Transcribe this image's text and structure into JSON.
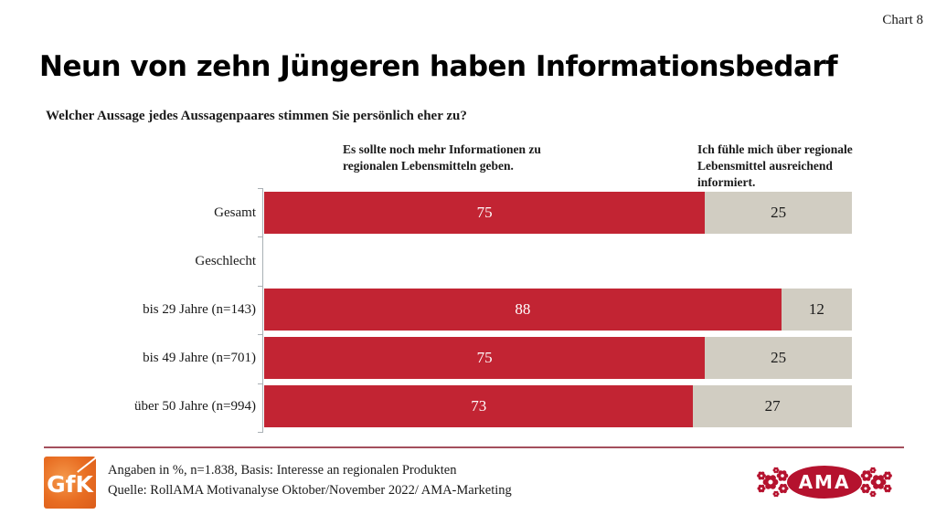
{
  "page": {
    "corner_label": "Chart 8",
    "title": "Neun von zehn Jüngeren haben Informationsbedarf",
    "question": "Welcher Aussage jedes Aussagenpaares stimmen Sie persönlich eher zu?"
  },
  "chart_data": {
    "type": "bar",
    "orientation": "horizontal",
    "stacked": true,
    "unit": "percent",
    "xlim": [
      0,
      100
    ],
    "grid": false,
    "legend_position": "top-as-column-headers",
    "categories": [
      "Gesamt",
      "Geschlecht",
      "bis 29 Jahre (n=143)",
      "bis 49 Jahre (n=701)",
      "über 50 Jahre (n=994)"
    ],
    "series": [
      {
        "name": "Es sollte noch mehr Informationen zu regionalen Lebensmitteln geben.",
        "color": "#C22433",
        "text_color": "#FFFFFF",
        "values": [
          75,
          null,
          88,
          75,
          73
        ]
      },
      {
        "name": "Ich fühle mich über regionale Lebensmittel ausreichend informiert.",
        "color": "#D1CDC2",
        "text_color": "#1A1A1A",
        "values": [
          25,
          null,
          12,
          25,
          27
        ]
      }
    ]
  },
  "footer": {
    "note_line1": "Angaben in %, n=1.838, Basis: Interesse an regionalen Produkten",
    "note_line2": "Quelle: RollAMA Motivanalyse Oktober/November 2022/ AMA-Marketing",
    "gfk_logo_text": "GfK",
    "ama_logo_text": "AMA",
    "gfk_orange": "#E86D22",
    "ama_red": "#B5122E",
    "separator_color": "#A34F5C"
  }
}
